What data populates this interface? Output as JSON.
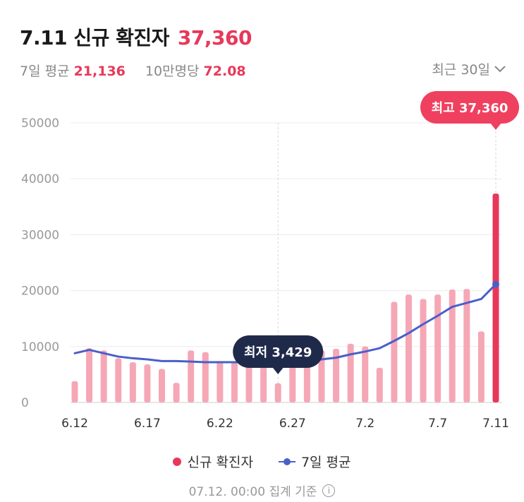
{
  "header": {
    "title": "7.11 신규 확진자",
    "title_value": "37,360",
    "avg_label": "7일 평균",
    "avg_value": "21,136",
    "per_label": "10만명당",
    "per_value": "72.08",
    "period_label": "최근 30일"
  },
  "legend": {
    "bar_label": "신규 확진자",
    "line_label": "7일 평균"
  },
  "footer": {
    "text": "07.12. 00:00 집계 기준"
  },
  "icons": {
    "period_toggle": "chevron-down-icon",
    "info": "info-icon"
  },
  "colors": {
    "bar": "#f5a7b6",
    "bar_highlight": "#e8385a",
    "line": "#4a5fc9",
    "tooltip_max_bg": "#f0405f",
    "tooltip_min_bg": "#1f2a4b"
  },
  "chart_data": {
    "type": "bar",
    "categories": [
      "6.12",
      "6.13",
      "6.14",
      "6.15",
      "6.16",
      "6.17",
      "6.18",
      "6.19",
      "6.20",
      "6.21",
      "6.22",
      "6.23",
      "6.24",
      "6.25",
      "6.26",
      "6.27",
      "6.28",
      "6.29",
      "6.30",
      "7.1",
      "7.2",
      "7.3",
      "7.4",
      "7.5",
      "7.6",
      "7.7",
      "7.8",
      "7.9",
      "7.10",
      "7.11"
    ],
    "x_tick_labels": [
      "6.12",
      "6.17",
      "6.22",
      "6.27",
      "7.2",
      "7.7",
      "7.11"
    ],
    "y_ticks": [
      0,
      10000,
      20000,
      30000,
      40000,
      50000
    ],
    "ylim": [
      0,
      50000
    ],
    "series": [
      {
        "name": "신규 확진자",
        "kind": "bar",
        "values": [
          3800,
          9700,
          9300,
          7900,
          7200,
          6800,
          6000,
          3500,
          9300,
          9000,
          7400,
          7200,
          7000,
          7200,
          3429,
          9500,
          9400,
          9300,
          9600,
          10500,
          10000,
          6200,
          18000,
          19300,
          18500,
          19300,
          20200,
          20300,
          12700,
          37360
        ]
      },
      {
        "name": "7일 평균",
        "kind": "line",
        "values": [
          8800,
          9400,
          8800,
          8200,
          7900,
          7700,
          7400,
          7400,
          7300,
          7200,
          7200,
          7200,
          7200,
          7200,
          7200,
          7300,
          7400,
          7700,
          8000,
          8600,
          9100,
          9700,
          11000,
          12400,
          14000,
          15500,
          17100,
          17800,
          18500,
          21136
        ]
      }
    ],
    "annotations": [
      {
        "label": "최고 37,360",
        "category": "7.11",
        "series": "신규 확진자",
        "value": 37360
      },
      {
        "label": "최저 3,429",
        "category": "6.26",
        "series": "신규 확진자",
        "value": 3429
      }
    ],
    "grid": true,
    "legend_position": "bottom"
  }
}
